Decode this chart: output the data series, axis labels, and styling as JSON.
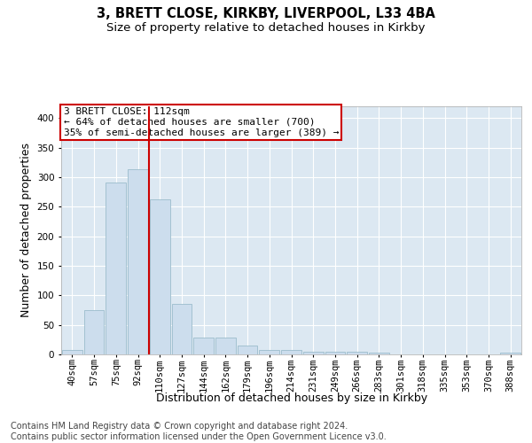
{
  "title1": "3, BRETT CLOSE, KIRKBY, LIVERPOOL, L33 4BA",
  "title2": "Size of property relative to detached houses in Kirkby",
  "xlabel": "Distribution of detached houses by size in Kirkby",
  "ylabel": "Number of detached properties",
  "bin_labels": [
    "40sqm",
    "57sqm",
    "75sqm",
    "92sqm",
    "110sqm",
    "127sqm",
    "144sqm",
    "162sqm",
    "179sqm",
    "196sqm",
    "214sqm",
    "231sqm",
    "249sqm",
    "266sqm",
    "283sqm",
    "301sqm",
    "318sqm",
    "335sqm",
    "353sqm",
    "370sqm",
    "388sqm"
  ],
  "bar_heights": [
    8,
    75,
    291,
    313,
    262,
    85,
    29,
    29,
    15,
    8,
    8,
    5,
    5,
    5,
    3,
    0,
    0,
    0,
    0,
    0,
    3
  ],
  "bar_color": "#ccdded",
  "bar_edgecolor": "#9bbccc",
  "vline_color": "#cc0000",
  "vline_x": 3.5,
  "annotation_line1": "3 BRETT CLOSE: 112sqm",
  "annotation_line2": "← 64% of detached houses are smaller (700)",
  "annotation_line3": "35% of semi-detached houses are larger (389) →",
  "annotation_box_facecolor": "white",
  "annotation_box_edgecolor": "#cc0000",
  "footer_text": "Contains HM Land Registry data © Crown copyright and database right 2024.\nContains public sector information licensed under the Open Government Licence v3.0.",
  "ylim": [
    0,
    420
  ],
  "yticks": [
    0,
    50,
    100,
    150,
    200,
    250,
    300,
    350,
    400
  ],
  "plot_bg_color": "#dce8f2",
  "grid_color": "#ffffff",
  "title1_fontsize": 10.5,
  "title2_fontsize": 9.5,
  "xlabel_fontsize": 9,
  "ylabel_fontsize": 9,
  "annot_fontsize": 8,
  "tick_fontsize": 7.5,
  "footer_fontsize": 7
}
